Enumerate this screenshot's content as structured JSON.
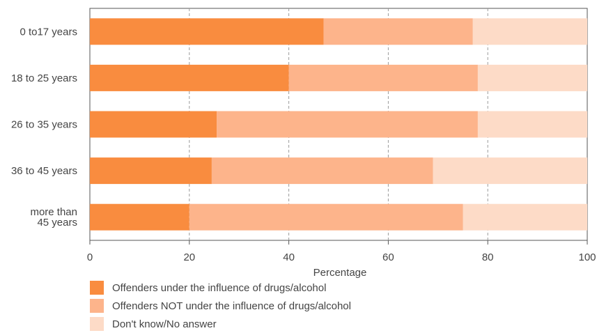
{
  "chart_data": {
    "type": "bar",
    "orientation": "horizontal",
    "stacked": true,
    "title": "",
    "xlabel": "Percentage",
    "ylabel": "",
    "xlim": [
      0,
      100
    ],
    "xticks": [
      "0",
      "20",
      "40",
      "60",
      "80",
      "100"
    ],
    "grid": true,
    "legend_position": "bottom-left",
    "categories": [
      [
        "0 to17 years"
      ],
      [
        "18 to 25 years"
      ],
      [
        "26 to 35 years"
      ],
      [
        "36 to 45 years"
      ],
      [
        "more than",
        "45 years"
      ]
    ],
    "series": [
      {
        "name": "Offenders under the influence of drugs/alcohol",
        "color": "#f98c3f",
        "values": [
          47,
          40,
          25.5,
          24.5,
          20
        ]
      },
      {
        "name": "Offenders NOT under the influence of drugs/alcohol",
        "color": "#fdb48b",
        "values": [
          30,
          38,
          52.5,
          44.5,
          55
        ]
      },
      {
        "name": "Don't know/No answer",
        "color": "#fddbc7",
        "values": [
          23,
          22,
          22,
          31,
          25
        ]
      }
    ]
  }
}
